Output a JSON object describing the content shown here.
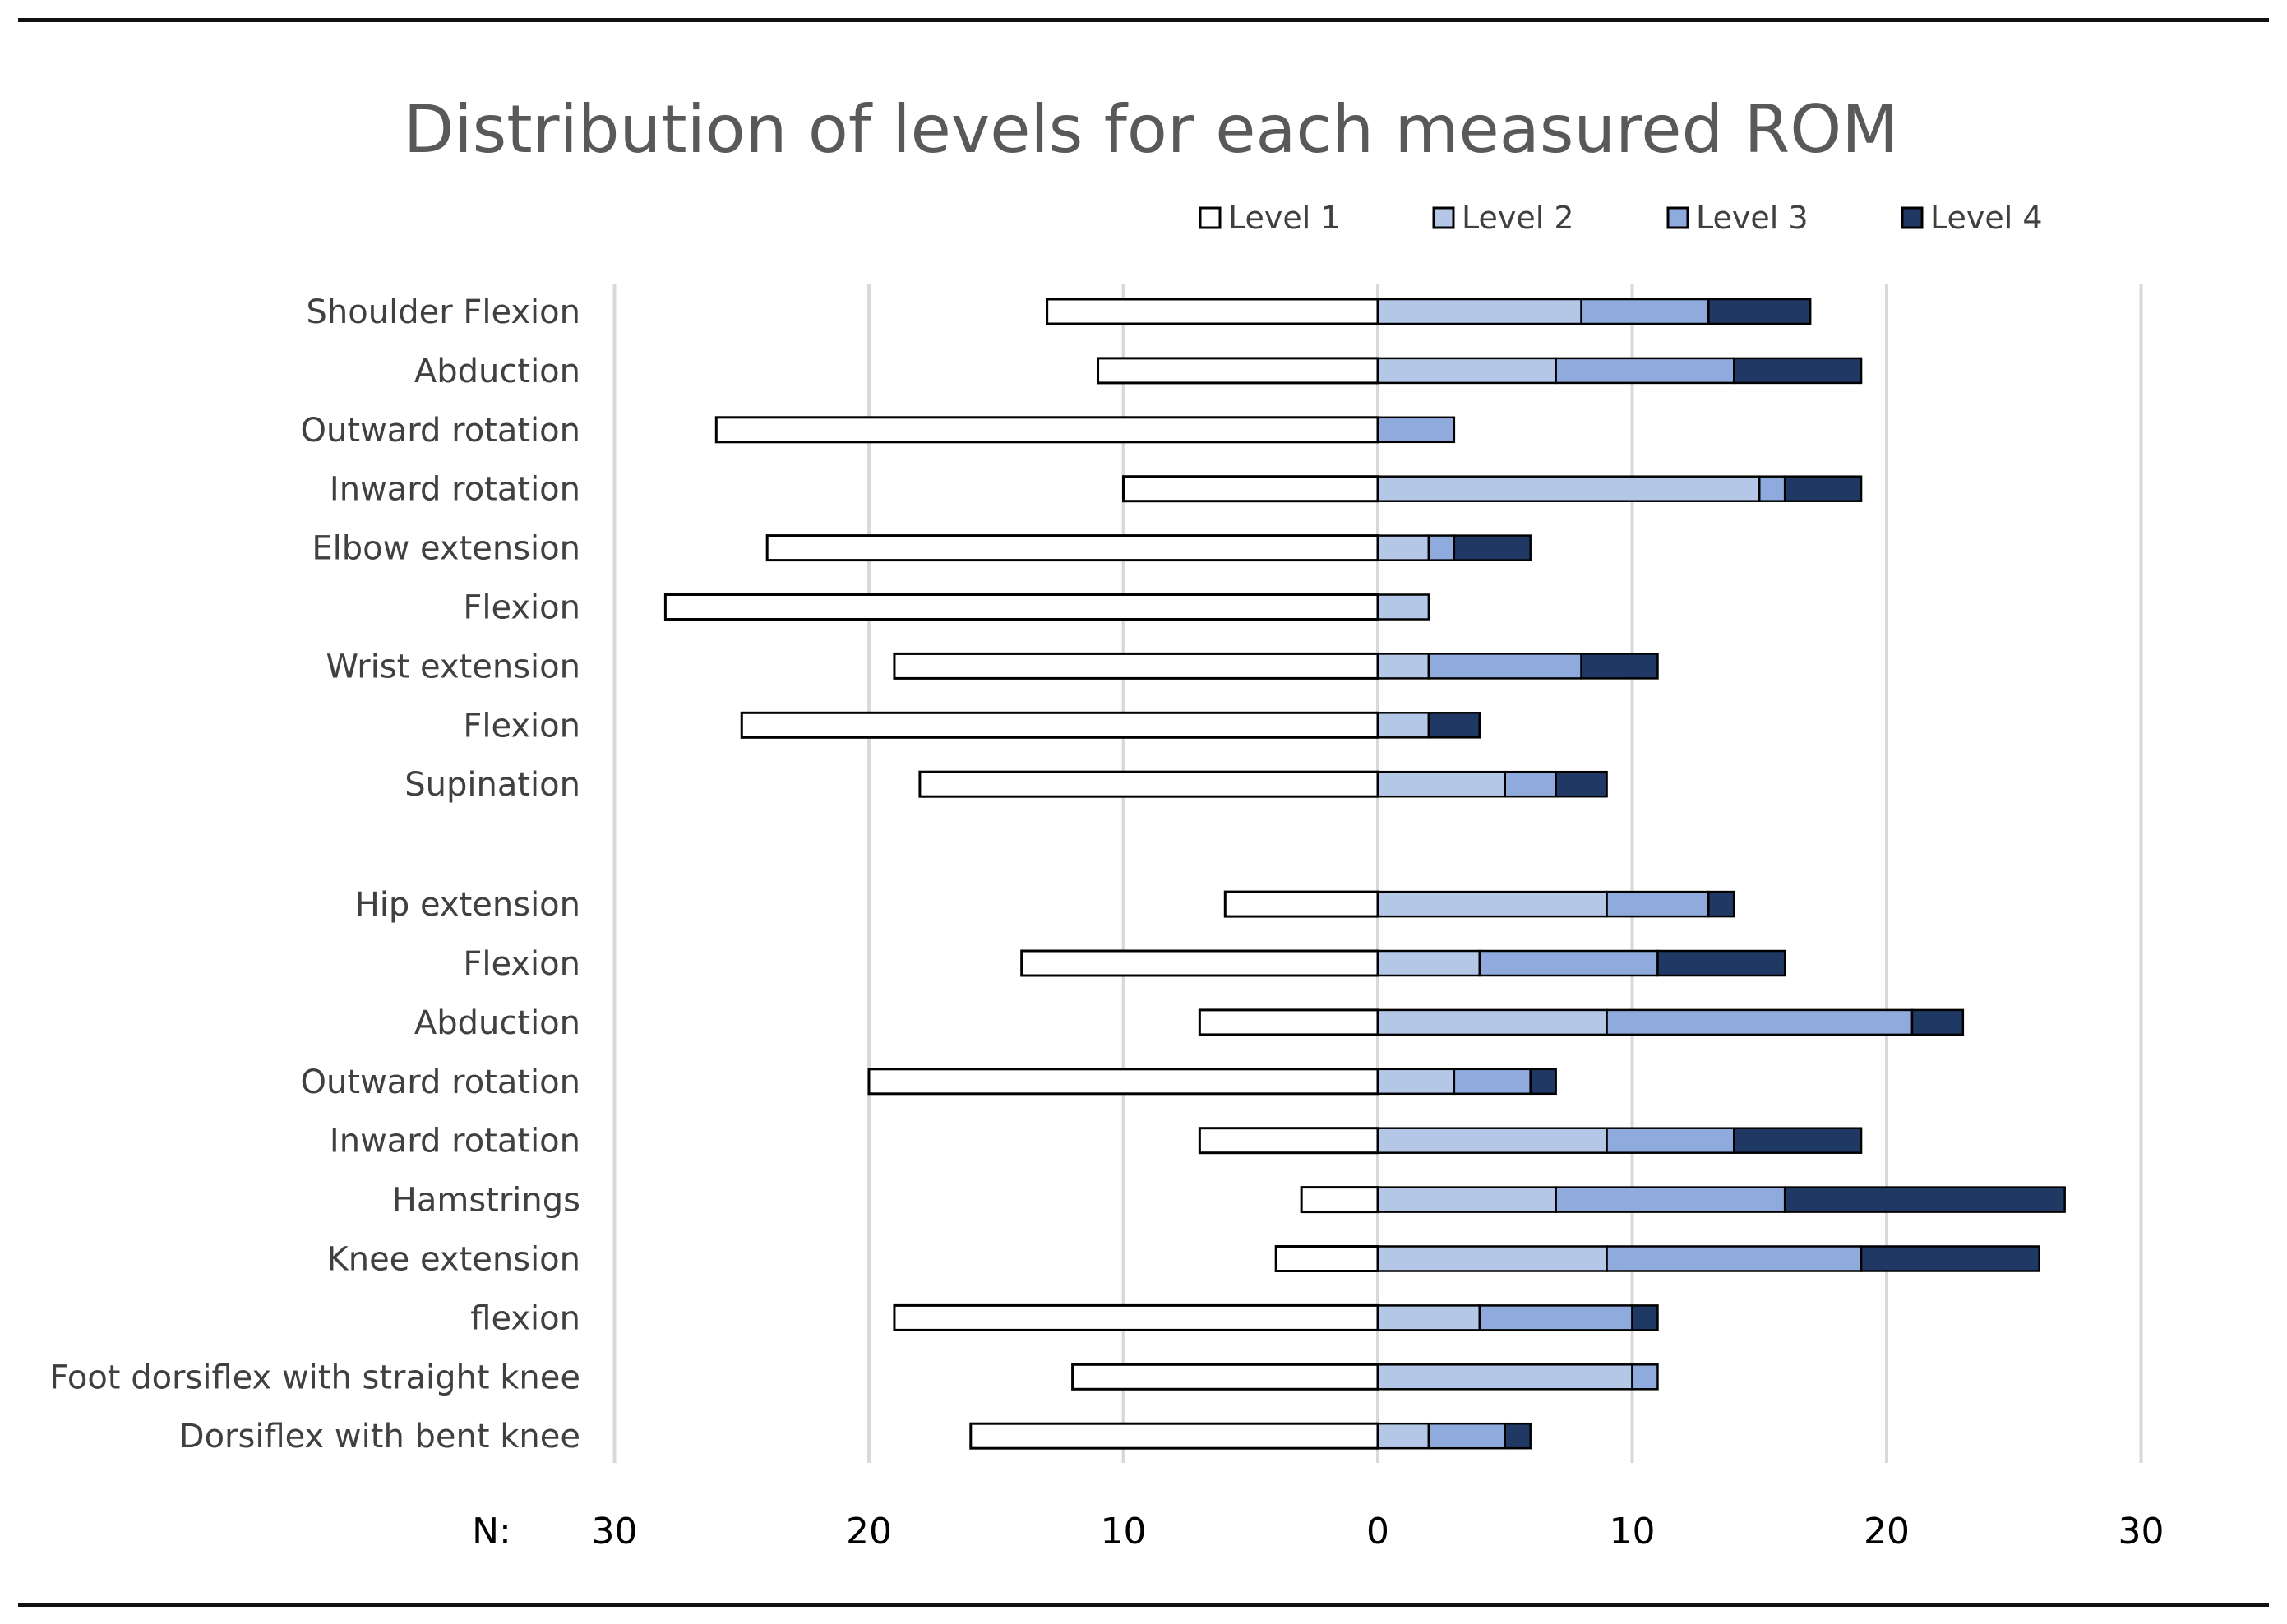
{
  "chart_data": {
    "type": "bar",
    "orientation": "horizontal",
    "stacked": true,
    "diverging": true,
    "title": "Distribution of levels for each measured ROM",
    "xlabel": "N:",
    "xlim": [
      -30,
      30
    ],
    "xticks": [
      -30,
      -20,
      -10,
      0,
      10,
      20,
      30
    ],
    "xtick_labels": [
      "30",
      "20",
      "10",
      "0",
      "10",
      "20",
      "30"
    ],
    "grid": "vertical",
    "legend_position": "top-right",
    "categories": [
      "Shoulder Flexion",
      "Abduction",
      "Outward rotation",
      "Inward rotation",
      "Elbow extension",
      "Flexion",
      "Wrist extension",
      "Flexion",
      "Supination",
      "Hip extension",
      "Flexion",
      "Abduction",
      "Outward rotation",
      "Inward rotation",
      "Hamstrings",
      "Knee extension",
      "flexion",
      "Foot dorsiflex with straight knee",
      "Dorsiflex with bent knee"
    ],
    "group_break_after": 9,
    "series": [
      {
        "name": "Level 1",
        "side": "left",
        "color": "#ffffff",
        "values": [
          13,
          11,
          26,
          10,
          24,
          28,
          19,
          25,
          18,
          6,
          14,
          7,
          20,
          7,
          3,
          4,
          19,
          12,
          16
        ]
      },
      {
        "name": "Level 2",
        "side": "right",
        "color": "#b4c7e7",
        "values": [
          8,
          7,
          0,
          15,
          2,
          2,
          2,
          2,
          5,
          9,
          4,
          9,
          3,
          9,
          7,
          9,
          4,
          10,
          2
        ]
      },
      {
        "name": "Level 3",
        "side": "right",
        "color": "#8faadc",
        "values": [
          5,
          7,
          3,
          1,
          1,
          0,
          6,
          0,
          2,
          4,
          7,
          12,
          3,
          5,
          9,
          10,
          6,
          1,
          3
        ]
      },
      {
        "name": "Level 4",
        "side": "right",
        "color": "#203864",
        "values": [
          4,
          5,
          0,
          3,
          3,
          0,
          3,
          2,
          2,
          1,
          5,
          2,
          1,
          5,
          11,
          7,
          1,
          0,
          1
        ]
      }
    ]
  }
}
